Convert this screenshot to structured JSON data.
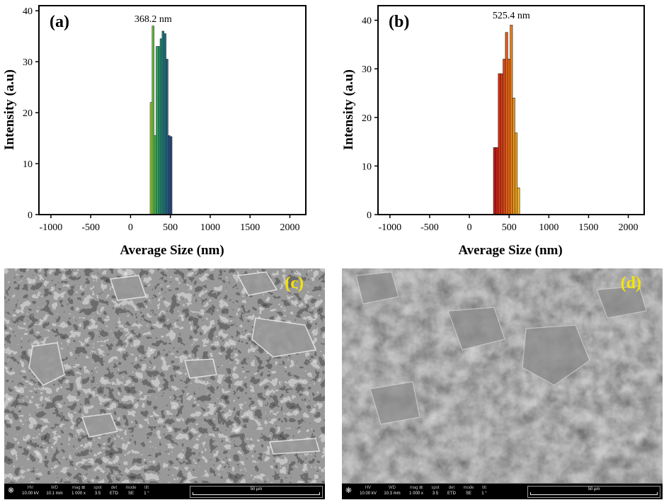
{
  "chart_data": [
    {
      "panel": "(a)",
      "type": "bar",
      "peak_label": "368.2 nm",
      "xlabel": "Average Size (nm)",
      "ylabel": "Intensity (a.u)",
      "xlim": [
        -1150,
        2200
      ],
      "ylim": [
        0,
        41
      ],
      "xticks": [
        -1000,
        -500,
        0,
        500,
        1000,
        1500,
        2000
      ],
      "yticks": [
        0,
        10,
        20,
        30,
        40
      ],
      "bar_width_nm": 25,
      "x": [
        258,
        283,
        308,
        333,
        358,
        383,
        408,
        433,
        458,
        483,
        508
      ],
      "values": [
        22,
        37,
        15.5,
        33,
        33,
        34.5,
        36,
        35.5,
        30.5,
        15.5,
        15.3
      ],
      "colors": [
        "#9ed33a",
        "#6ec846",
        "#4cbb54",
        "#36ad64",
        "#2aa06e",
        "#23907a",
        "#20827e",
        "#227382",
        "#246684",
        "#275985",
        "#2a4d85"
      ]
    },
    {
      "panel": "(b)",
      "type": "bar",
      "peak_label": "525.4 nm",
      "xlabel": "Average Size (nm)",
      "ylabel": "Intensity (a.u)",
      "xlim": [
        -1150,
        2200
      ],
      "ylim": [
        0,
        43
      ],
      "xticks": [
        -1000,
        -500,
        0,
        500,
        1000,
        1500,
        2000
      ],
      "yticks": [
        0,
        10,
        20,
        30,
        40
      ],
      "bar_width_nm": 30,
      "x": [
        318,
        348,
        378,
        408,
        438,
        468,
        498,
        528,
        558,
        588,
        618
      ],
      "values": [
        13.8,
        13.8,
        29,
        29,
        32,
        37.5,
        32,
        39,
        24,
        16.8,
        5.5
      ],
      "colors": [
        "#c01a1a",
        "#cc2418",
        "#d83016",
        "#e03c14",
        "#e64c14",
        "#ea5c14",
        "#ee6e16",
        "#f08018",
        "#f2941a",
        "#f4a61c",
        "#f6b61e"
      ]
    }
  ],
  "sem": [
    {
      "label": "(c)",
      "info": {
        "hv": {
          "label": "HV",
          "value": "10.00 kV"
        },
        "wd": {
          "label": "WD",
          "value": "10.1 mm"
        },
        "mag": {
          "label": "mag ⊠",
          "value": "1 000 x"
        },
        "spot": {
          "label": "spot",
          "value": "3.5"
        },
        "det": {
          "label": "det",
          "value": "ETD"
        },
        "mode": {
          "label": "mode",
          "value": "SE"
        },
        "tilt": {
          "label": "tilt",
          "value": "1 °"
        },
        "scale": "50 µm"
      }
    },
    {
      "label": "(d)",
      "info": {
        "hv": {
          "label": "HV",
          "value": "10.00 kV"
        },
        "wd": {
          "label": "WD",
          "value": "10.3 mm"
        },
        "mag": {
          "label": "mag ⊠",
          "value": "1 000 x"
        },
        "spot": {
          "label": "spot",
          "value": "3.5"
        },
        "det": {
          "label": "det",
          "value": "ETD"
        },
        "mode": {
          "label": "mode",
          "value": "SE"
        },
        "tilt": {
          "label": "tilt",
          "value": "1 °"
        },
        "scale": "50 µm"
      }
    }
  ]
}
